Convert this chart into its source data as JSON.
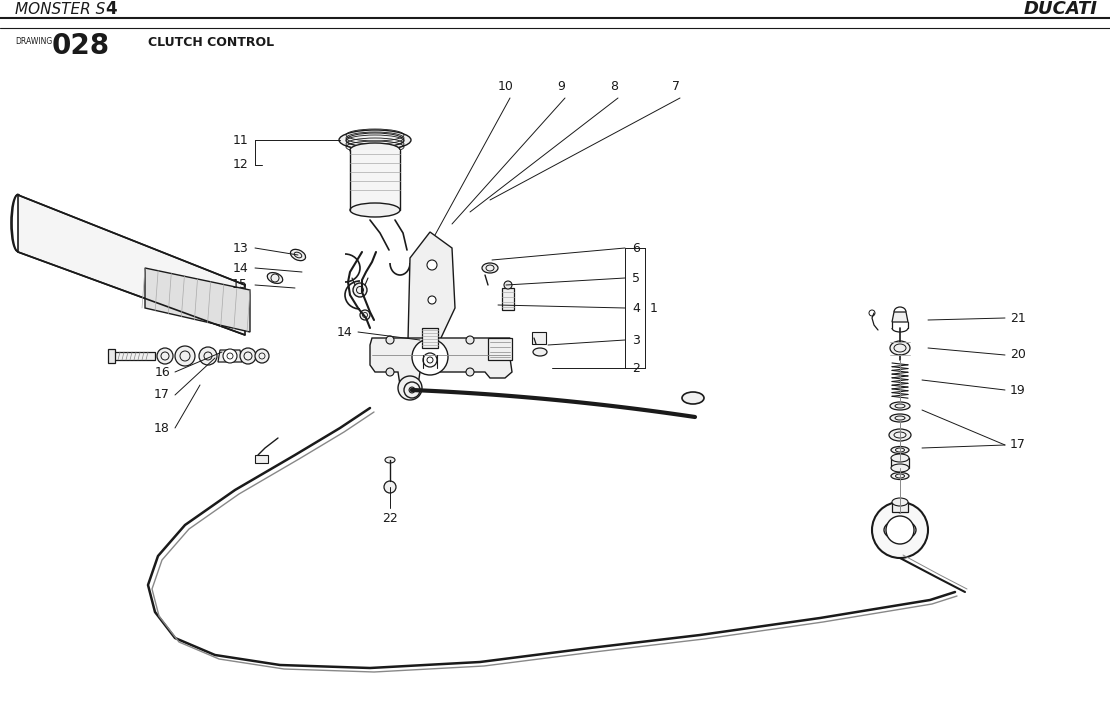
{
  "fig_width": 11.1,
  "fig_height": 7.14,
  "dpi": 100,
  "bg": "#ffffff",
  "lc": "#1a1a1a",
  "header_monster": "MONSTER S",
  "header_4": "4",
  "header_ducati": "DUCATI",
  "draw_label": "DRAWING",
  "draw_num": "028",
  "draw_title": "CLUTCH CONTROL"
}
